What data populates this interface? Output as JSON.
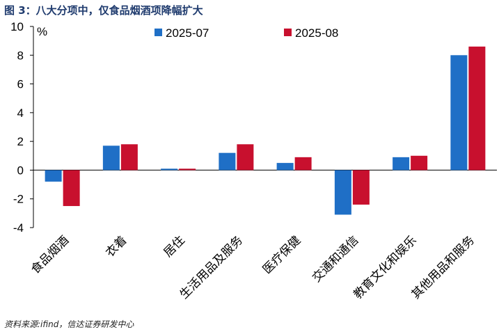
{
  "figure": {
    "title": "图 3：八大分项中，仅食品烟酒项降幅扩大",
    "source": "资料来源:ifind，信达证券研发中心"
  },
  "chart_data": {
    "type": "bar",
    "title": "图 3：八大分项中，仅食品烟酒项降幅扩大",
    "xlabel": "",
    "ylabel": "%",
    "ylim": [
      -4,
      10
    ],
    "yticks": [
      -4,
      -2,
      0,
      2,
      4,
      6,
      8,
      10
    ],
    "grid": false,
    "legend_position": "top-center",
    "categories": [
      "食品烟酒",
      "衣着",
      "居住",
      "生活用品及服务",
      "医疗保健",
      "交通和通信",
      "教育文化和娱乐",
      "其他用品和服务"
    ],
    "series": [
      {
        "name": "2025-07",
        "color": "#1f6fc6",
        "values": [
          -0.8,
          1.7,
          0.1,
          1.2,
          0.5,
          -3.1,
          0.9,
          8.0
        ]
      },
      {
        "name": "2025-08",
        "color": "#c8102e",
        "values": [
          -2.5,
          1.8,
          0.1,
          1.8,
          0.9,
          -2.4,
          1.0,
          8.6
        ]
      }
    ]
  }
}
